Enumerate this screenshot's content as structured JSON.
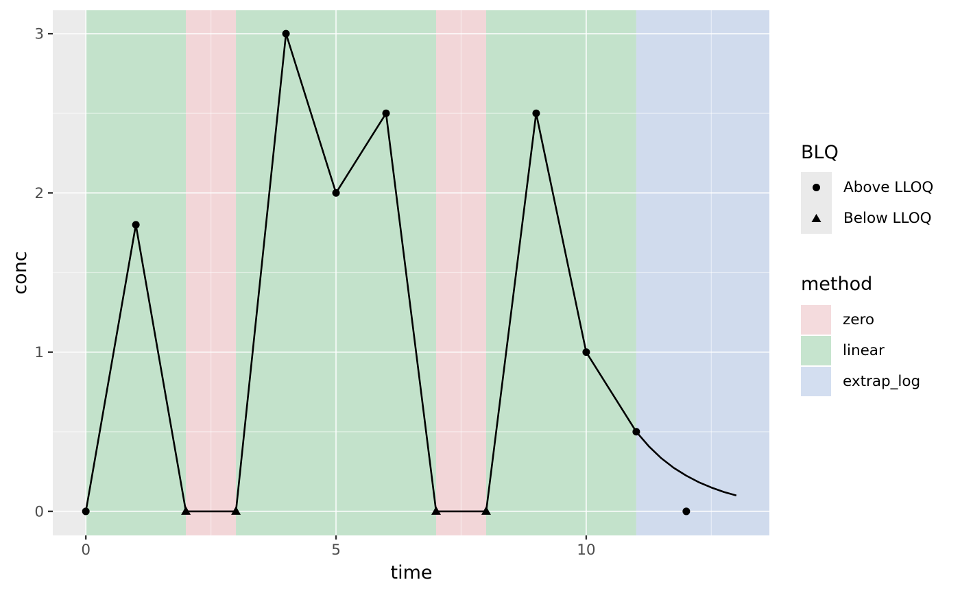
{
  "chart_data": {
    "type": "line",
    "title": "",
    "xlabel": "time",
    "ylabel": "conc",
    "xlim": [
      -0.66,
      13.66
    ],
    "ylim": [
      -0.151,
      3.147
    ],
    "x_ticks": [
      0,
      5,
      10
    ],
    "x_minor_ticks": [
      2.5,
      7.5,
      12.5
    ],
    "y_ticks": [
      0,
      1,
      2,
      3
    ],
    "y_minor_ticks": [
      0.5,
      1.5,
      2.5
    ],
    "grid": true,
    "legend_position": "right",
    "points": [
      {
        "t": 0,
        "conc": 0,
        "blq": "Above LLOQ",
        "shape": "circle",
        "in_line": true
      },
      {
        "t": 1,
        "conc": 1.8,
        "blq": "Above LLOQ",
        "shape": "circle",
        "in_line": true
      },
      {
        "t": 2,
        "conc": 0,
        "blq": "Below LLOQ",
        "shape": "triangle",
        "in_line": true
      },
      {
        "t": 3,
        "conc": 0,
        "blq": "Below LLOQ",
        "shape": "triangle",
        "in_line": true
      },
      {
        "t": 4,
        "conc": 3,
        "blq": "Above LLOQ",
        "shape": "circle",
        "in_line": true
      },
      {
        "t": 5,
        "conc": 2,
        "blq": "Above LLOQ",
        "shape": "circle",
        "in_line": true
      },
      {
        "t": 6,
        "conc": 2.5,
        "blq": "Above LLOQ",
        "shape": "circle",
        "in_line": true
      },
      {
        "t": 7,
        "conc": 0,
        "blq": "Below LLOQ",
        "shape": "triangle",
        "in_line": true
      },
      {
        "t": 8,
        "conc": 0,
        "blq": "Below LLOQ",
        "shape": "triangle",
        "in_line": true
      },
      {
        "t": 9,
        "conc": 2.5,
        "blq": "Above LLOQ",
        "shape": "circle",
        "in_line": true
      },
      {
        "t": 10,
        "conc": 1,
        "blq": "Above LLOQ",
        "shape": "circle",
        "in_line": true
      },
      {
        "t": 11,
        "conc": 0.5,
        "blq": "Above LLOQ",
        "shape": "circle",
        "in_line": true
      },
      {
        "t": 12,
        "conc": 0,
        "blq": "Above LLOQ",
        "shape": "circle",
        "in_line": false
      }
    ],
    "extrapolation_curve": [
      [
        11,
        0.5
      ],
      [
        11.25,
        0.409
      ],
      [
        11.5,
        0.334
      ],
      [
        11.75,
        0.273
      ],
      [
        12,
        0.224
      ],
      [
        12.25,
        0.183
      ],
      [
        12.5,
        0.15
      ],
      [
        12.75,
        0.122
      ],
      [
        13,
        0.1
      ]
    ],
    "method_bands": [
      {
        "method": "linear",
        "from": 0,
        "to": 2
      },
      {
        "method": "zero",
        "from": 2,
        "to": 3
      },
      {
        "method": "linear",
        "from": 3,
        "to": 7
      },
      {
        "method": "zero",
        "from": 7,
        "to": 8
      },
      {
        "method": "linear",
        "from": 8,
        "to": 11
      },
      {
        "method": "extrap_log",
        "from": 11,
        "to": 13.66
      }
    ],
    "colors": {
      "zero": "#f2d6d8",
      "linear": "#c3e2cb",
      "extrap_log": "#d0dbed",
      "panel": "#ebebeb",
      "grid": "#ffffff",
      "line": "#000000",
      "tick_text": "#4d4d4d",
      "tick_mark": "#333333"
    }
  },
  "legend": {
    "blq": {
      "title": "BLQ",
      "items": [
        {
          "label": "Above LLOQ",
          "shape": "circle"
        },
        {
          "label": "Below LLOQ",
          "shape": "triangle"
        }
      ]
    },
    "method": {
      "title": "method",
      "items": [
        {
          "label": "zero",
          "color": "#f4dbdd"
        },
        {
          "label": "linear",
          "color": "#c6e4ce"
        },
        {
          "label": "extrap_log",
          "color": "#d3def0"
        }
      ]
    }
  }
}
